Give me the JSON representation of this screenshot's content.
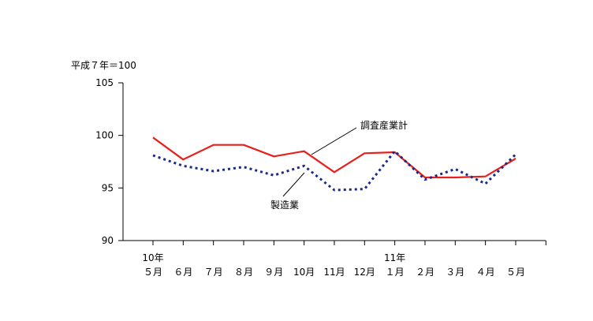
{
  "chart_data": {
    "type": "line",
    "unit_label": "平成７年＝100",
    "year_labels": [
      {
        "index": 0,
        "label": "10年"
      },
      {
        "index": 8,
        "label": "11年"
      }
    ],
    "categories": [
      "５月",
      "６月",
      "７月",
      "８月",
      "９月",
      "10月",
      "11月",
      "12月",
      "１月",
      "２月",
      "３月",
      "４月",
      "５月"
    ],
    "ylim": [
      90,
      105
    ],
    "yticks": [
      90,
      95,
      100,
      105
    ],
    "grid": false,
    "series": [
      {
        "name": "調査産業計",
        "color": "#e8201c",
        "style": "solid",
        "values": [
          99.8,
          97.7,
          99.1,
          99.1,
          98.0,
          98.5,
          96.5,
          98.3,
          98.4,
          96.0,
          96.0,
          96.1,
          97.8
        ]
      },
      {
        "name": "製造業",
        "color": "#1a2a8a",
        "style": "dotted",
        "values": [
          98.1,
          97.1,
          96.6,
          97.0,
          96.2,
          97.1,
          94.8,
          94.9,
          98.5,
          95.8,
          96.8,
          95.4,
          98.2
        ]
      }
    ]
  }
}
